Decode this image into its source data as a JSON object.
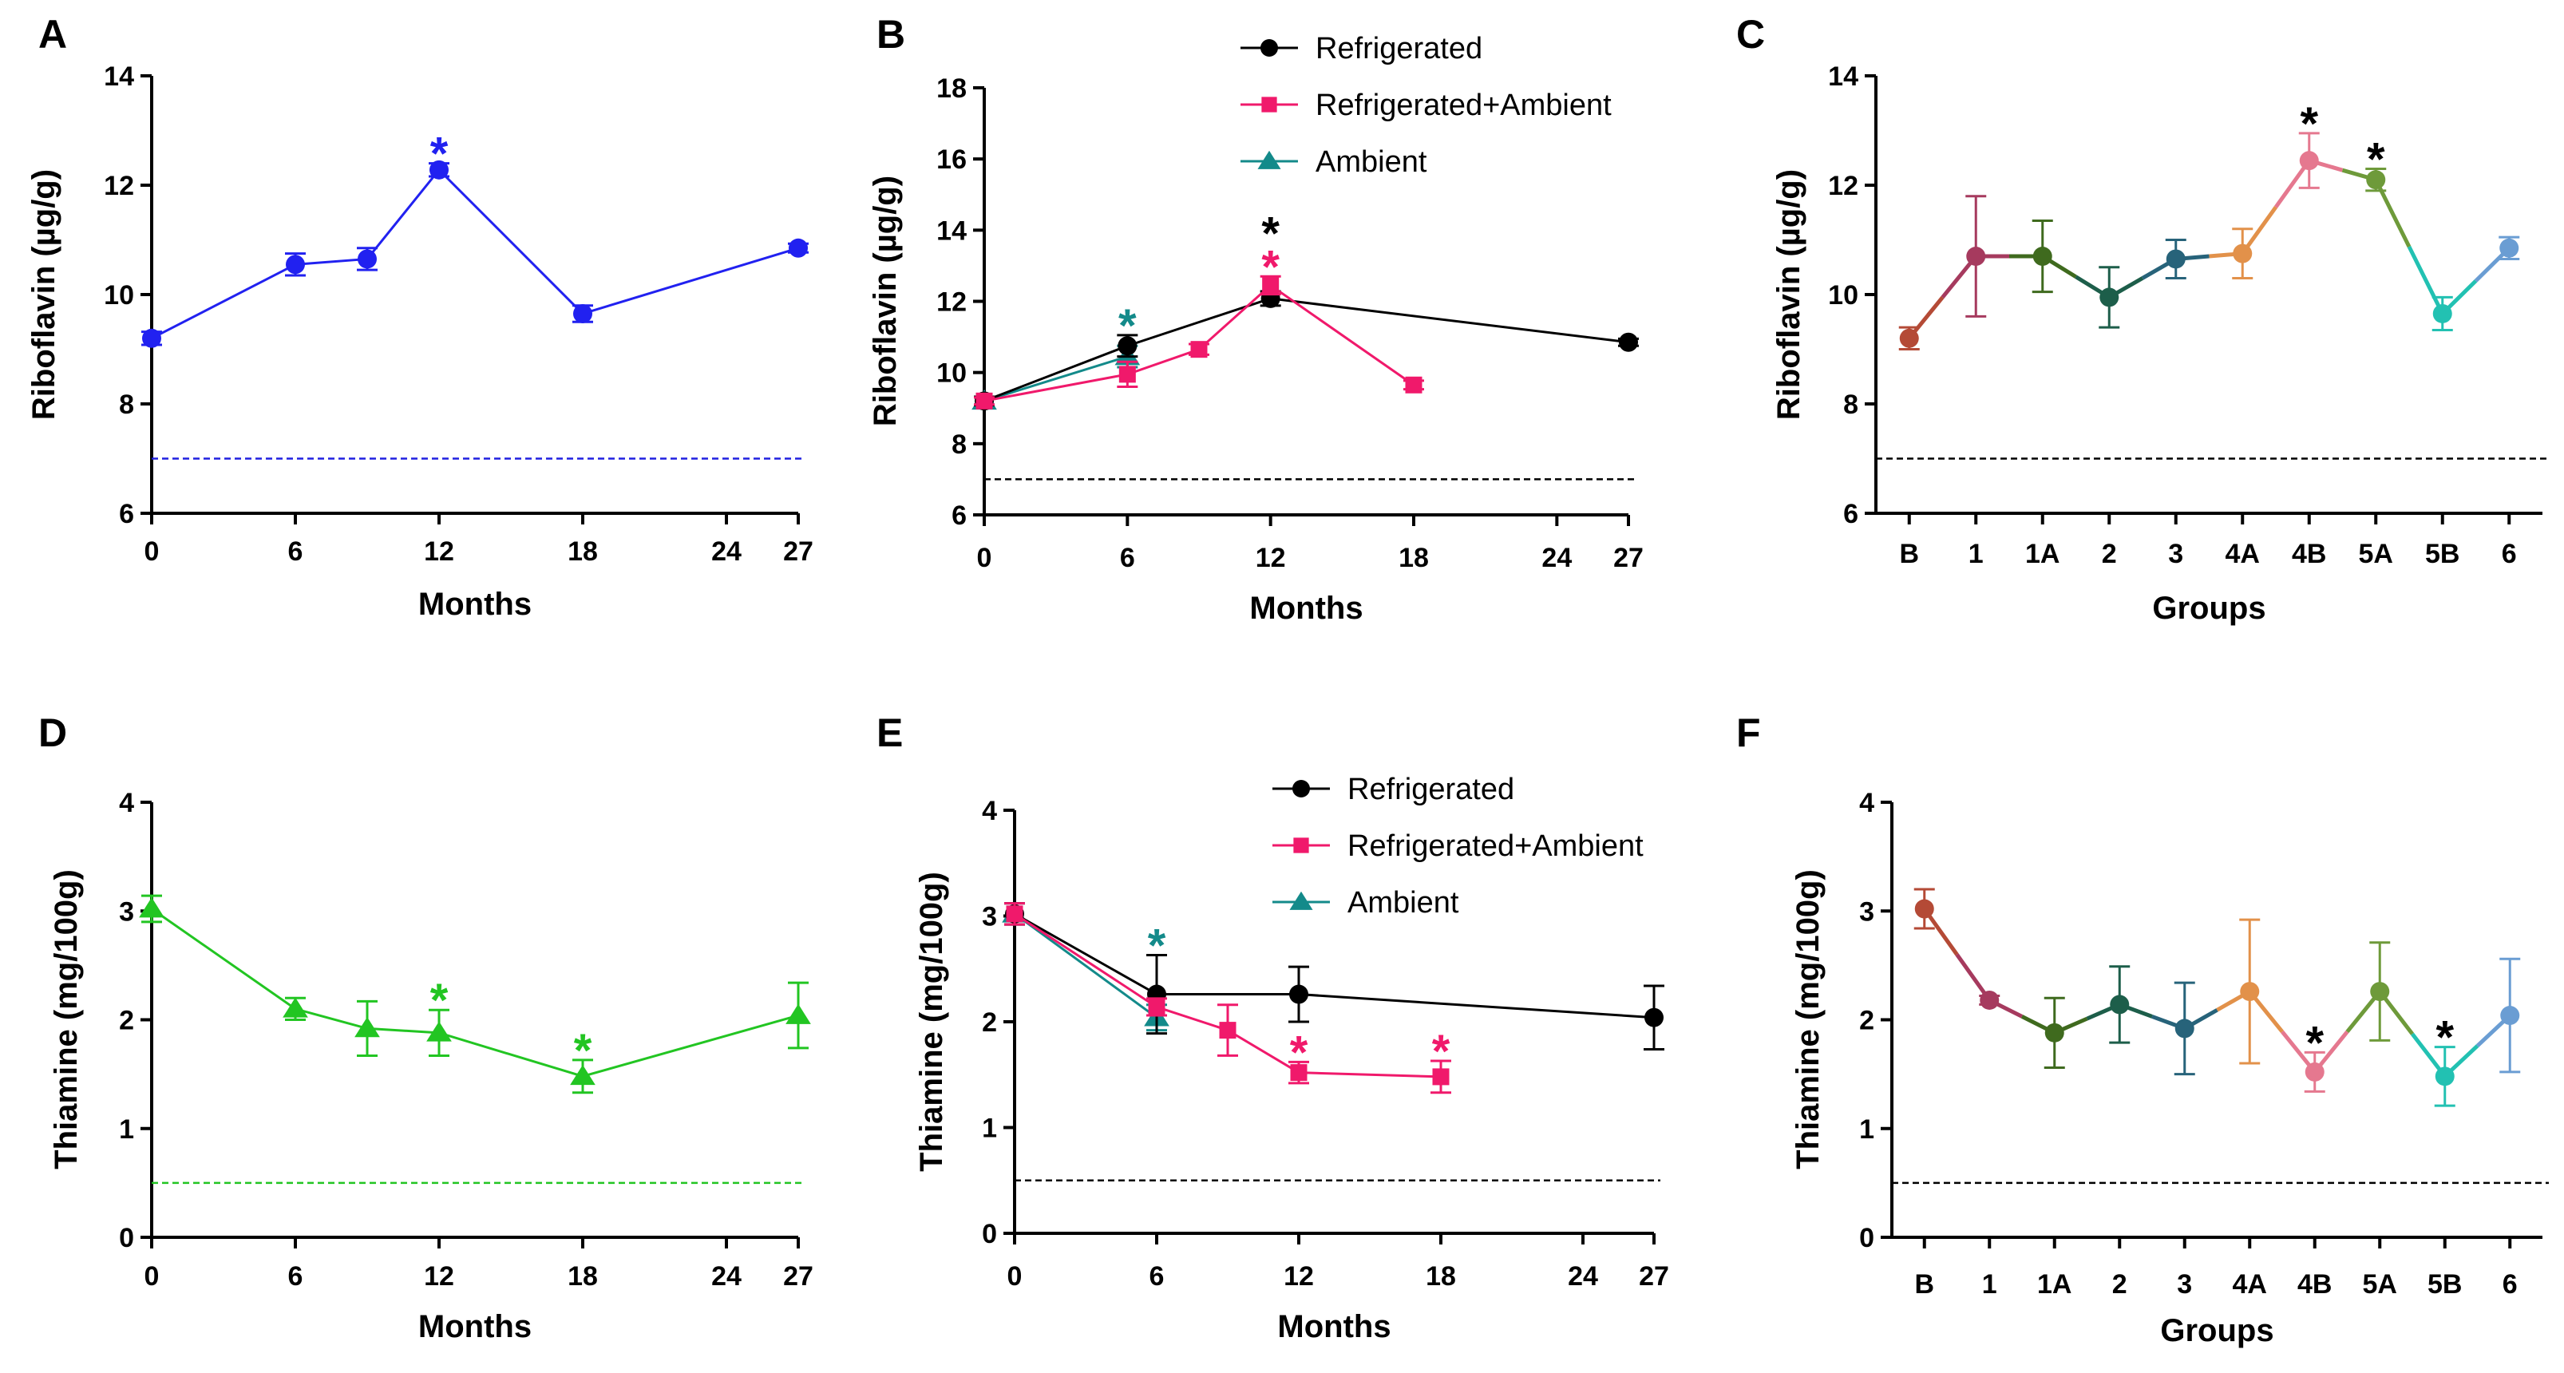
{
  "chart_data": [
    {
      "panel": "A",
      "type": "line",
      "xlabel": "Months",
      "ylabel": "Riboflavin (µg/g)",
      "xlim": [
        0,
        27
      ],
      "ylim": [
        6,
        14
      ],
      "xticks": [
        0,
        6,
        12,
        18,
        24,
        27
      ],
      "yticks": [
        6,
        8,
        10,
        12,
        14
      ],
      "reference_line": {
        "y": 7,
        "color": "#2020e0"
      },
      "series": [
        {
          "name": "Riboflavin",
          "color": "#2121f0",
          "marker": "circle",
          "x": [
            0,
            6,
            9,
            12,
            18,
            27
          ],
          "y": [
            9.2,
            10.55,
            10.65,
            12.28,
            9.65,
            10.85
          ],
          "err": [
            0.12,
            0.2,
            0.2,
            0.12,
            0.15,
            0.08
          ]
        }
      ],
      "annotations": [
        {
          "text": "*",
          "x": 12,
          "y": 12.28,
          "err": 0.12,
          "color": "#2121f0"
        }
      ]
    },
    {
      "panel": "B",
      "type": "line",
      "xlabel": "Months",
      "ylabel": "Riboflavin (µg/g)",
      "xlim": [
        0,
        27
      ],
      "ylim": [
        6,
        18
      ],
      "xticks": [
        0,
        6,
        12,
        18,
        24,
        27
      ],
      "yticks": [
        6,
        8,
        10,
        12,
        14,
        16,
        18
      ],
      "reference_line": {
        "y": 7,
        "color": "#000000"
      },
      "legend": "top-center",
      "series": [
        {
          "name": "Ambient",
          "color": "#138a8a",
          "marker": "triangle",
          "x": [
            0,
            6
          ],
          "y": [
            9.2,
            10.45
          ],
          "err": [
            0.1,
            0.3
          ]
        },
        {
          "name": "Refrigerated",
          "color": "#000000",
          "marker": "circle",
          "x": [
            0,
            6,
            12,
            27
          ],
          "y": [
            9.2,
            10.75,
            12.08,
            10.85
          ],
          "err": [
            0.12,
            0.3,
            0.2,
            0.1
          ]
        },
        {
          "name": "Refrigerated+Ambient",
          "color": "#f0196b",
          "marker": "square",
          "x": [
            0,
            6,
            9,
            12,
            18
          ],
          "y": [
            9.2,
            9.95,
            10.65,
            12.45,
            9.65
          ],
          "err": [
            0.1,
            0.35,
            0.15,
            0.25,
            0.12
          ]
        }
      ],
      "annotations": [
        {
          "text": "*",
          "x": 6,
          "y": 10.75,
          "err": 0.3,
          "color": "#138a8a"
        },
        {
          "text": "*",
          "x": 12,
          "y": 12.45,
          "err": 0.25,
          "color": "#f0196b"
        },
        {
          "text": "*",
          "x": 12,
          "y": 12.45,
          "err": 0.25,
          "color": "#000000",
          "stack": 1
        }
      ]
    },
    {
      "panel": "C",
      "type": "line",
      "xlabel": "Groups",
      "ylabel": "Riboflavin (µg/g)",
      "ylim": [
        6,
        14
      ],
      "yticks": [
        6,
        8,
        10,
        12,
        14
      ],
      "categories": [
        "B",
        "1",
        "1A",
        "2",
        "3",
        "4A",
        "4B",
        "5A",
        "5B",
        "6"
      ],
      "values": [
        9.2,
        10.7,
        10.7,
        9.95,
        10.65,
        10.75,
        12.45,
        12.1,
        9.65,
        10.85
      ],
      "err": [
        0.2,
        1.1,
        0.65,
        0.55,
        0.35,
        0.45,
        0.5,
        0.2,
        0.3,
        0.2
      ],
      "colors": [
        "#b44a36",
        "#a63a5e",
        "#3f6a1e",
        "#1d5e4a",
        "#27637a",
        "#e2914a",
        "#e5788f",
        "#6e9a3a",
        "#22c1b2",
        "#6a9dd3"
      ],
      "reference_line": {
        "y": 7,
        "color": "#000000"
      },
      "annotations": [
        {
          "text": "*",
          "category": "4B",
          "color": "#000000"
        },
        {
          "text": "*",
          "category": "5A",
          "color": "#000000"
        }
      ]
    },
    {
      "panel": "D",
      "type": "line",
      "xlabel": "Months",
      "ylabel": "Thiamine (mg/100g)",
      "xlim": [
        0,
        27
      ],
      "ylim": [
        0,
        4
      ],
      "xticks": [
        0,
        6,
        12,
        18,
        24,
        27
      ],
      "yticks": [
        0,
        1,
        2,
        3,
        4
      ],
      "reference_line": {
        "y": 0.5,
        "color": "#22c522"
      },
      "series": [
        {
          "name": "Thiamine",
          "color": "#22c522",
          "marker": "triangle",
          "x": [
            0,
            6,
            9,
            12,
            18,
            27
          ],
          "y": [
            3.02,
            2.1,
            1.92,
            1.88,
            1.48,
            2.04
          ],
          "err": [
            0.12,
            0.1,
            0.25,
            0.21,
            0.15,
            0.3
          ]
        }
      ],
      "annotations": [
        {
          "text": "*",
          "x": 12,
          "y": 1.88,
          "err": 0.21,
          "color": "#22c522"
        },
        {
          "text": "*",
          "x": 18,
          "y": 1.48,
          "err": 0.15,
          "color": "#22c522"
        }
      ]
    },
    {
      "panel": "E",
      "type": "line",
      "xlabel": "Months",
      "ylabel": "Thiamine (mg/100g)",
      "xlim": [
        0,
        27
      ],
      "ylim": [
        0,
        4
      ],
      "xticks": [
        0,
        6,
        12,
        18,
        24,
        27
      ],
      "yticks": [
        0,
        1,
        2,
        3,
        4
      ],
      "reference_line": {
        "y": 0.5,
        "color": "#000000"
      },
      "legend": "top-center",
      "series": [
        {
          "name": "Ambient",
          "color": "#138a8a",
          "marker": "triangle",
          "x": [
            0,
            6
          ],
          "y": [
            3.02,
            2.04
          ],
          "err": [
            0.1,
            0.12
          ]
        },
        {
          "name": "Refrigerated",
          "color": "#000000",
          "marker": "circle",
          "x": [
            0,
            6,
            12,
            27
          ],
          "y": [
            3.02,
            2.26,
            2.26,
            2.04
          ],
          "err": [
            0.1,
            0.37,
            0.26,
            0.3
          ]
        },
        {
          "name": "Refrigerated+Ambient",
          "color": "#f0196b",
          "marker": "square",
          "x": [
            0,
            6,
            9,
            12,
            18
          ],
          "y": [
            3.02,
            2.14,
            1.92,
            1.52,
            1.48
          ],
          "err": [
            0.1,
            0.08,
            0.24,
            0.1,
            0.15
          ]
        }
      ],
      "annotations": [
        {
          "text": "*",
          "x": 6,
          "y": 2.26,
          "err": 0.37,
          "color": "#138a8a"
        },
        {
          "text": "*",
          "x": 12,
          "y": 1.52,
          "err": 0.1,
          "color": "#f0196b"
        },
        {
          "text": "*",
          "x": 18,
          "y": 1.48,
          "err": 0.15,
          "color": "#f0196b"
        }
      ]
    },
    {
      "panel": "F",
      "type": "line",
      "xlabel": "Groups",
      "ylabel": "Thiamine (mg/100g)",
      "ylim": [
        0,
        4
      ],
      "yticks": [
        0,
        1,
        2,
        3,
        4
      ],
      "categories": [
        "B",
        "1",
        "1A",
        "2",
        "3",
        "4A",
        "4B",
        "5A",
        "5B",
        "6"
      ],
      "values": [
        3.02,
        2.18,
        1.88,
        2.14,
        1.92,
        2.26,
        1.52,
        2.26,
        1.48,
        2.04
      ],
      "err": [
        0.18,
        0.04,
        0.32,
        0.35,
        0.42,
        0.66,
        0.18,
        0.45,
        0.27,
        0.52
      ],
      "colors": [
        "#b44a36",
        "#a63a5e",
        "#3f6a1e",
        "#1d5e4a",
        "#27637a",
        "#e2914a",
        "#e5788f",
        "#6e9a3a",
        "#22c1b2",
        "#6a9dd3"
      ],
      "reference_line": {
        "y": 0.5,
        "color": "#000000"
      },
      "annotations": [
        {
          "text": "*",
          "category": "4B",
          "color": "#000000"
        },
        {
          "text": "*",
          "category": "5B",
          "color": "#000000"
        }
      ]
    }
  ]
}
